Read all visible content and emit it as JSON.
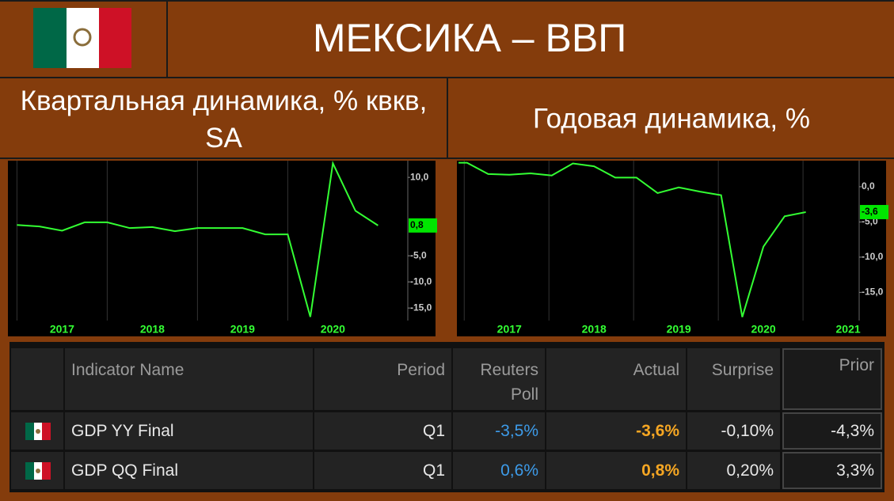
{
  "header": {
    "title": "МЕКСИКА – ВВП",
    "left_subtitle": "Квартальная динамика, % квкв, SA",
    "right_subtitle": "Годовая динамика, %"
  },
  "chart_data": [
    {
      "type": "line",
      "color": "#33ff33",
      "x": [
        2016.5,
        2016.75,
        2017,
        2017.25,
        2017.5,
        2017.75,
        2018,
        2018.25,
        2018.5,
        2018.75,
        2019,
        2019.25,
        2019.5,
        2019.75,
        2020,
        2020.25,
        2020.5
      ],
      "values": [
        0.9,
        0.6,
        -0.2,
        1.4,
        1.4,
        0.3,
        0.5,
        -0.3,
        0.3,
        0.3,
        0.3,
        -0.9,
        -0.9,
        -16.7,
        12.7,
        3.6,
        0.8
      ],
      "last_label": "0,8",
      "xlim": [
        2016.4,
        2020.83
      ],
      "xticks": [
        2017,
        2018,
        2019,
        2020
      ],
      "ylim": [
        -17.4,
        13.2
      ],
      "yticks": [
        {
          "value": 10,
          "label": "10,0"
        },
        {
          "value": -5,
          "label": "-5,0"
        },
        {
          "value": -10,
          "label": "-10,0"
        },
        {
          "value": -15,
          "label": "-15,0"
        }
      ],
      "grid": true
    },
    {
      "type": "line",
      "color": "#33ff33",
      "x": [
        2016.4,
        2016.5,
        2016.75,
        2017,
        2017.25,
        2017.5,
        2017.75,
        2018,
        2018.25,
        2018.5,
        2018.75,
        2019,
        2019.25,
        2019.5,
        2019.75,
        2020,
        2020.25,
        2020.5
      ],
      "values": [
        3.4,
        3.4,
        1.8,
        1.7,
        1.9,
        1.6,
        3.3,
        2.9,
        1.3,
        1.3,
        -0.9,
        -0.1,
        -0.7,
        -1.2,
        -18.5,
        -8.5,
        -4.2,
        -3.6
      ],
      "last_label": "-3,6",
      "xlim": [
        2016.39,
        2021.13
      ],
      "xticks": [
        2017,
        2018,
        2019,
        2020,
        2021
      ],
      "ylim": [
        -19,
        3.7
      ],
      "yticks": [
        {
          "value": 0,
          "label": "0,0"
        },
        {
          "value": -5,
          "label": "-5,0"
        },
        {
          "value": -10,
          "label": "-10,0"
        },
        {
          "value": -15,
          "label": "-15,0"
        }
      ],
      "grid": true
    }
  ],
  "table": {
    "columns": [
      "Indicator Name",
      "Period",
      "Reuters Poll",
      "Actual",
      "Surprise",
      "Prior"
    ],
    "rows": [
      [
        "GDP YY Final",
        "Q1",
        "-3,5%",
        "-3,6%",
        "-0,10%",
        "-4,3%"
      ],
      [
        "GDP QQ Final",
        "Q1",
        "0,6%",
        "0,8%",
        "0,20%",
        "3,3%"
      ]
    ]
  }
}
